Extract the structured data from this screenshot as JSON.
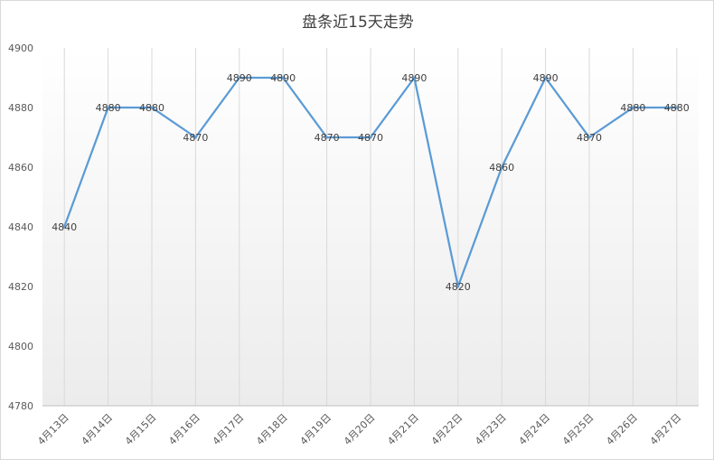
{
  "chart_data": {
    "type": "line",
    "title": "盘条近15天走势",
    "categories": [
      "4月13日",
      "4月14日",
      "4月15日",
      "4月16日",
      "4月17日",
      "4月18日",
      "4月19日",
      "4月20日",
      "4月21日",
      "4月22日",
      "4月23日",
      "4月24日",
      "4月25日",
      "4月26日",
      "4月27日"
    ],
    "values": [
      4840,
      4880,
      4880,
      4870,
      4890,
      4890,
      4870,
      4870,
      4890,
      4820,
      4860,
      4890,
      4870,
      4880,
      4880
    ],
    "ylim": [
      4780,
      4900
    ],
    "yticks": [
      4780,
      4800,
      4820,
      4840,
      4860,
      4880,
      4900
    ],
    "data_labels": true,
    "grid": "vertical",
    "line_color": "#5b9bd5",
    "grid_color": "#d9d9d9"
  }
}
